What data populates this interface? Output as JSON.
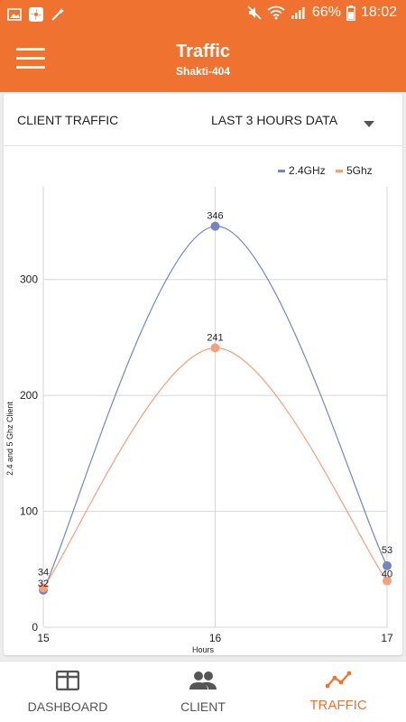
{
  "status_bar": {
    "battery": "66%",
    "time": "18:02",
    "left_icons": [
      "gallery-icon",
      "fan-icon",
      "magic-wand-icon"
    ],
    "right_icons": [
      "mute-icon",
      "wifi-icon",
      "signal-icon",
      "battery-icon"
    ]
  },
  "app_bar": {
    "title": "Traffic",
    "subtitle": "Shakti-404",
    "menu_icon": "hamburger-menu-icon",
    "color": "#f07230"
  },
  "card": {
    "title": "CLIENT TRAFFIC",
    "range_selected": "LAST 3 HOURS DATA"
  },
  "chart_data": {
    "type": "line",
    "x": [
      15,
      16,
      17
    ],
    "xlabel": "Hours",
    "ylabel": "2.4 and 5 Ghz Client",
    "xlim": [
      15,
      17
    ],
    "ylim": [
      0,
      380
    ],
    "yticks": [
      0,
      100,
      200,
      300
    ],
    "grid": true,
    "legend_position": "top-right",
    "series": [
      {
        "name": "2.4GHz",
        "color": "#7585bf",
        "values": [
          32,
          346,
          53
        ]
      },
      {
        "name": "5Ghz",
        "color": "#f4a07c",
        "values": [
          34,
          241,
          40
        ]
      }
    ]
  },
  "bottom_nav": {
    "items": [
      {
        "label": "DASHBOARD",
        "icon": "dashboard-icon",
        "active": false
      },
      {
        "label": "CLIENT",
        "icon": "people-icon",
        "active": false
      },
      {
        "label": "TRAFFIC",
        "icon": "trend-line-icon",
        "active": true
      }
    ],
    "active_color": "#f07230"
  }
}
